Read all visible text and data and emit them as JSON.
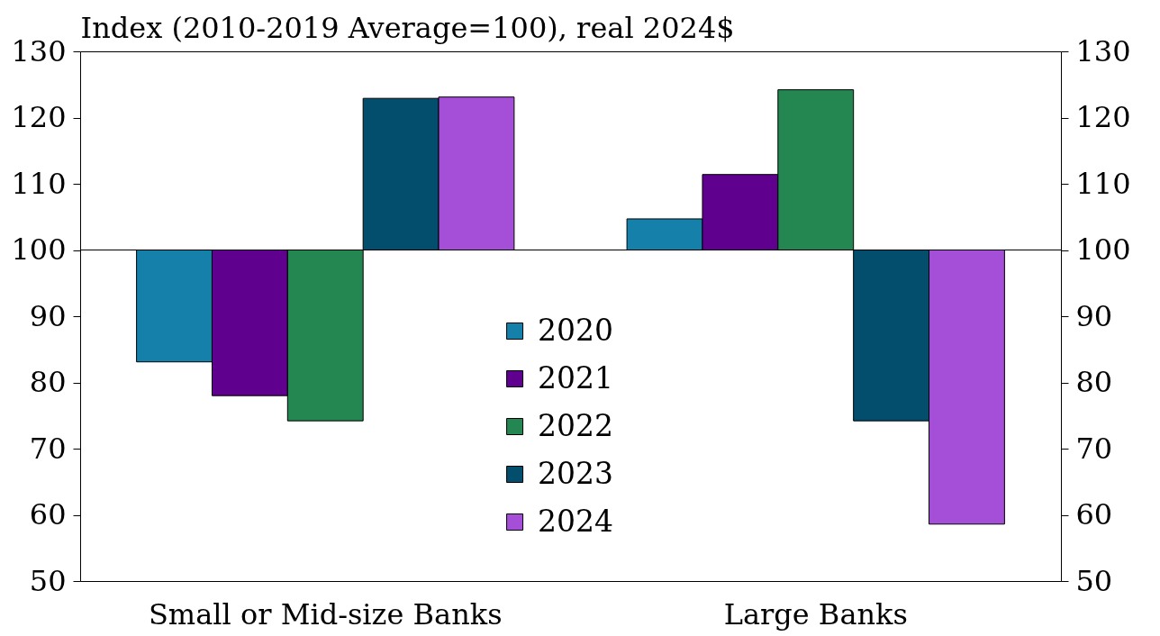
{
  "chart_data": {
    "type": "bar",
    "ylabel": "Index (2010-2019 Average=100), real 2024$",
    "categories": [
      "Small or Mid-size Banks",
      "Large Banks"
    ],
    "series": [
      {
        "name": "2020",
        "color": "#1580aa",
        "base": [
          100,
          100
        ],
        "values": [
          -16.9,
          4.7
        ]
      },
      {
        "name": "2021",
        "color": "#5f008f",
        "base": [
          100,
          100
        ],
        "values": [
          -22.0,
          11.4
        ]
      },
      {
        "name": "2022",
        "color": "#248650",
        "base": [
          100,
          100
        ],
        "values": [
          -25.8,
          24.2
        ]
      },
      {
        "name": "2023",
        "color": "#034d6d",
        "base": [
          100,
          100
        ],
        "values": [
          22.9,
          -25.8
        ]
      },
      {
        "name": "2024",
        "color": "#a54fd9",
        "base": [
          100,
          100
        ],
        "values": [
          23.1,
          -41.4
        ]
      }
    ],
    "ylim": [
      50,
      130
    ],
    "yticks": [
      50,
      60,
      70,
      80,
      90,
      100,
      110,
      120,
      130
    ],
    "y2lim": [
      50,
      130
    ],
    "y2ticks": [
      50,
      60,
      70,
      80,
      90,
      100,
      110,
      120,
      130
    ],
    "ref_lines": [
      {
        "axis": "y",
        "value": 100
      }
    ],
    "legend": "bottom",
    "grid": false
  }
}
